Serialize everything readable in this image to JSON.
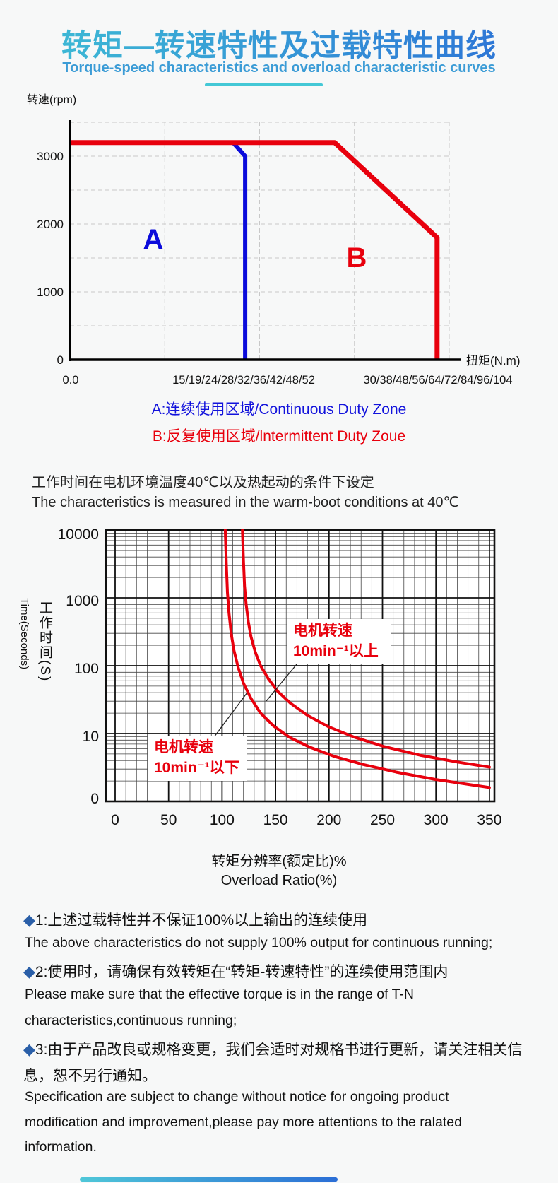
{
  "header": {
    "title": "转矩—转速特性及过载特性曲线",
    "subtitle": "Torque-speed characteristics and overload characteristic curves",
    "accent_teal": "#44c8d6",
    "accent_blue": "#2b6ed6"
  },
  "chart1": {
    "y_axis_label": "转速(rpm)",
    "x_axis_label": "扭矩(N.m)",
    "y_tick_labels": [
      "3000",
      "2000",
      "1000",
      "0"
    ],
    "y_tick_values": [
      3000,
      2000,
      1000,
      0
    ],
    "x_tick_labels": [
      "0.0",
      "15/19/24/28/32/36/42/48/52",
      "30/38/48/56/64/72/84/96/104"
    ],
    "zone_a_label": "A",
    "zone_b_label": "B",
    "color_continuous": "#0b0bdb",
    "color_intermittent": "#e8000d"
  },
  "legend": {
    "a": "A:连续使用区域/Continuous Duty Zone",
    "b": "B:反复使用区域/lntermittent Duty Zoue"
  },
  "condition_note": {
    "cn": "工作时间在电机环境温度40℃以及热起动的条件下设定",
    "en": "The characteristics is measured in the warm-boot conditions at 40℃"
  },
  "chart2": {
    "y_axis_label_cn": "工作时间(S)",
    "y_axis_label_en": "Time(Seconds)",
    "x_axis_label_cn": "转矩分辨率(额定比)%",
    "x_axis_label_en": "Overload Ratio(%)",
    "y_tick_labels": [
      "10000",
      "1000",
      "100",
      "10",
      "0"
    ],
    "x_tick_labels": [
      "0",
      "50",
      "100",
      "150",
      "200",
      "250",
      "300",
      "350"
    ],
    "annotations": [
      {
        "line1": "电机转速",
        "line2": "10min⁻¹以上"
      },
      {
        "line1": "电机转速",
        "line2": "10min⁻¹以下"
      }
    ],
    "curve_color": "#e8000d"
  },
  "chart_data": [
    {
      "type": "line",
      "title": "Torque-speed characteristic",
      "xlabel": "扭矩(N.m)",
      "ylabel": "转速(rpm)",
      "ylim": [
        0,
        3500
      ],
      "x_axis_note": "x expressed as fraction 0-1 of torque axis; tick groups list torques for multiple motor models",
      "x_tick_groups": [
        "0.0",
        "15/19/24/28/32/36/42/48/52",
        "30/38/48/56/64/72/84/96/104"
      ],
      "series": [
        {
          "name": "Continuous duty boundary (A)",
          "color": "#0b0bdb",
          "points_x01_rpm": [
            [
              0,
              3200
            ],
            [
              0.43,
              3200
            ],
            [
              0.462,
              3000
            ],
            [
              0.462,
              0
            ]
          ]
        },
        {
          "name": "Intermittent duty boundary (B)",
          "color": "#e8000d",
          "points_x01_rpm": [
            [
              0,
              3200
            ],
            [
              0.698,
              3200
            ],
            [
              0.968,
              1800
            ],
            [
              0.968,
              0
            ]
          ]
        }
      ],
      "zones": [
        {
          "label": "A",
          "meaning": "连续使用区域/Continuous Duty Zone"
        },
        {
          "label": "B",
          "meaning": "反复使用区域/lntermittent Duty Zoue"
        }
      ]
    },
    {
      "type": "line",
      "title": "Overload characteristic",
      "xlabel": "Overload Ratio(%)",
      "ylabel": "Time(Seconds)",
      "xlim": [
        0,
        350
      ],
      "ylog": true,
      "ylim": [
        1,
        10000
      ],
      "series": [
        {
          "name": "电机转速10min⁻¹以上 (motor speed above 10min⁻¹)",
          "color": "#e8000d",
          "points_pct_s": [
            [
              103,
              10000
            ],
            [
              104,
              3000
            ],
            [
              105,
              1200
            ],
            [
              106.5,
              600
            ],
            [
              108.5,
              300
            ],
            [
              111,
              170
            ],
            [
              115,
              95
            ],
            [
              120,
              55
            ],
            [
              127,
              33
            ],
            [
              136,
              20
            ],
            [
              148,
              13
            ],
            [
              163,
              8.8
            ],
            [
              182,
              6.3
            ],
            [
              205,
              4.6
            ],
            [
              232,
              3.5
            ],
            [
              263,
              2.7
            ],
            [
              300,
              2.1
            ],
            [
              350,
              1.6
            ]
          ]
        },
        {
          "name": "电机转速10min⁻¹以下 (motor speed below 10min⁻¹)",
          "color": "#e8000d",
          "points_pct_s": [
            [
              119,
              10000
            ],
            [
              120,
              3500
            ],
            [
              121,
              1500
            ],
            [
              122.5,
              800
            ],
            [
              124.5,
              450
            ],
            [
              127,
              270
            ],
            [
              131,
              160
            ],
            [
              136,
              100
            ],
            [
              143,
              65
            ],
            [
              152,
              42
            ],
            [
              164,
              28
            ],
            [
              180,
              18.5
            ],
            [
              200,
              12.5
            ],
            [
              224,
              8.8
            ],
            [
              252,
              6.4
            ],
            [
              285,
              4.8
            ],
            [
              320,
              3.8
            ],
            [
              350,
              3.2
            ]
          ]
        }
      ]
    }
  ],
  "notes": {
    "items": [
      {
        "cn": "1:上述过载特性并不保证100%以上输出的连续使用",
        "en": [
          "The above characteristics do not supply 100% output for continuous running;"
        ]
      },
      {
        "cn": "2:使用时，请确保有效转矩在“转矩-转速特性”的连续使用范围内",
        "en": [
          "Please make sure that the effective torque is in the range of T-N",
          "characteristics,continuous running;"
        ]
      },
      {
        "cn": "3:由于产品改良或规格变更，我们会适时对规格书进行更新，请关注相关信息，恕不另行通知。",
        "en": [
          "Specification are subject to change without notice for ongoing product",
          "modification and improvement,please pay more attentions to the ralated",
          "information."
        ]
      }
    ]
  }
}
